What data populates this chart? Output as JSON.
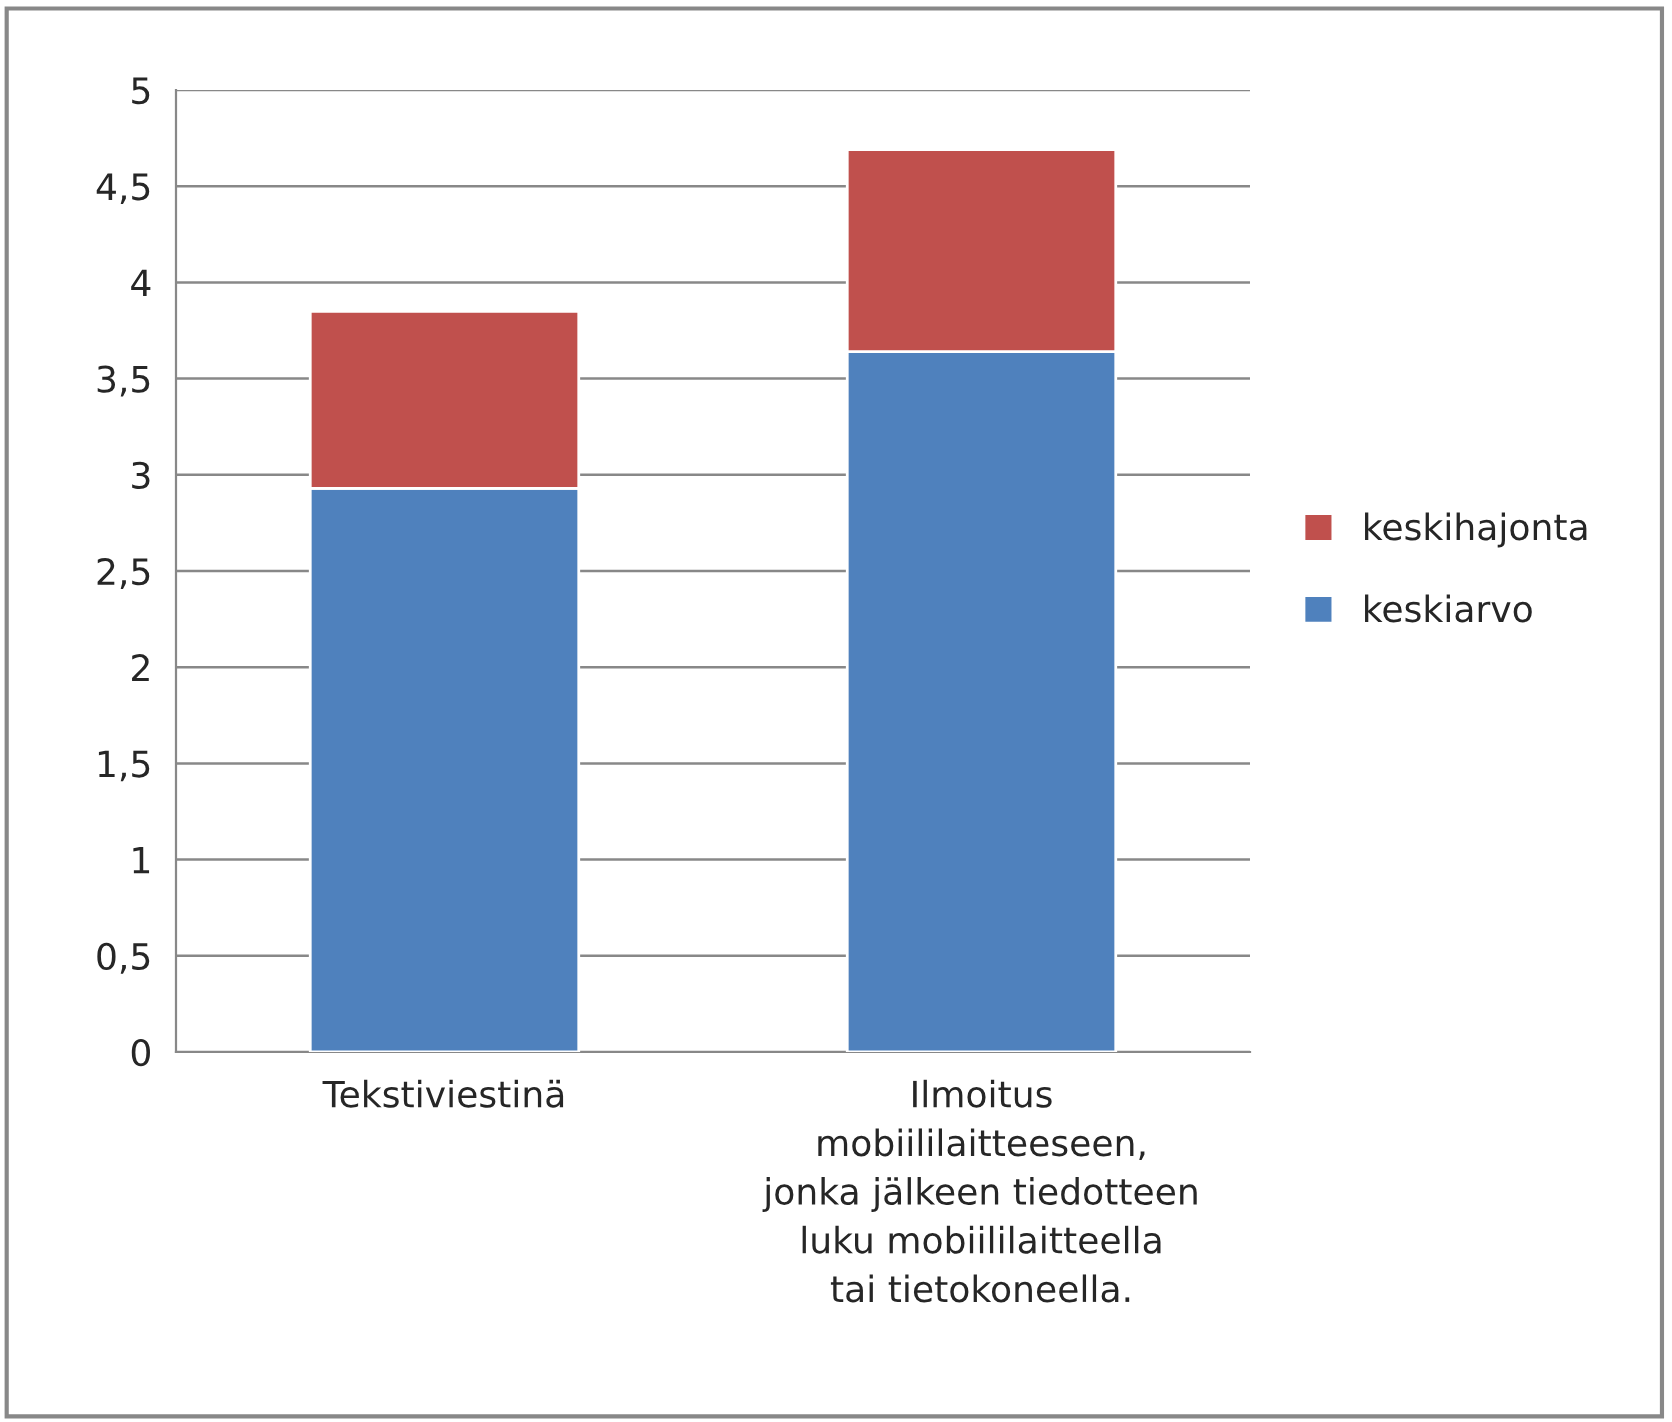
{
  "chart_data": {
    "type": "bar",
    "stacked": true,
    "categories": [
      "Tekstiviestinä",
      "Ilmoitus mobiililaitteeseen, jonka jälkeen tiedotteen luku mobiililaitteella tai tietokoneella."
    ],
    "series": [
      {
        "name": "keskiarvo",
        "color": "#4f81bd",
        "values": [
          2.93,
          3.64
        ]
      },
      {
        "name": "keskihajonta",
        "color": "#c0504d",
        "values": [
          0.92,
          1.05
        ]
      }
    ],
    "ylim": [
      0,
      5
    ],
    "yticks": [
      0,
      {
        "value": 0.5,
        "label": "0,5"
      },
      1,
      {
        "value": 1.5,
        "label": "1,5"
      },
      2,
      {
        "value": 2.5,
        "label": "2,5"
      },
      3,
      {
        "value": 3.5,
        "label": "3,5"
      },
      4,
      {
        "value": 4.5,
        "label": "4,5"
      },
      5
    ],
    "grid": "y",
    "legend": "right"
  }
}
